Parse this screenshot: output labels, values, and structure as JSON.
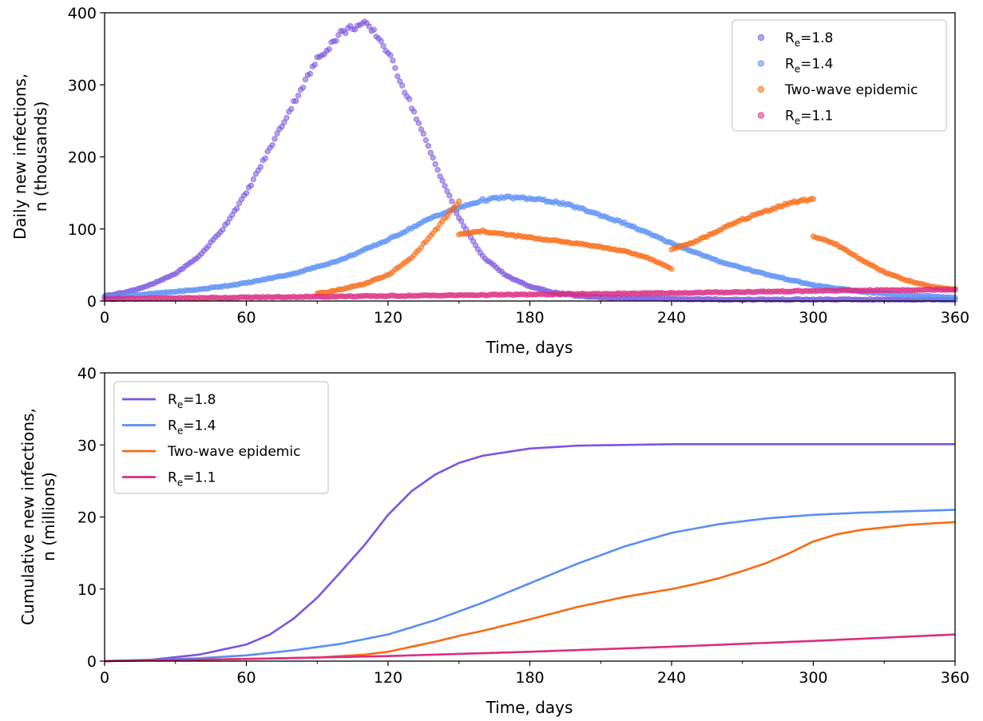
{
  "colors": {
    "re18": "#7b55e0",
    "re14": "#5a8ef5",
    "twowave": "#f96a14",
    "re11": "#dd2c82"
  },
  "chart_data": [
    {
      "type": "scatter",
      "xlabel": "Time, days",
      "ylabel_line1": "Daily new infections,",
      "ylabel_line2": "n (thousands)",
      "xlim": [
        0,
        360
      ],
      "ylim": [
        0,
        400
      ],
      "xticks": [
        0,
        60,
        120,
        180,
        240,
        300,
        360
      ],
      "yticks": [
        0,
        100,
        200,
        300,
        400
      ],
      "grid": false,
      "legend_position": "top-right",
      "series": [
        {
          "key": "re18",
          "name_main": "R",
          "name_sub": "e",
          "name_tail": "=1.8",
          "x": [
            0,
            10,
            20,
            30,
            40,
            50,
            60,
            70,
            80,
            90,
            100,
            105,
            110,
            115,
            120,
            130,
            140,
            150,
            160,
            170,
            180,
            190,
            200,
            210,
            220,
            240,
            260,
            300,
            360
          ],
          "y": [
            7,
            13,
            23,
            38,
            62,
            100,
            150,
            212,
            275,
            335,
            372,
            380,
            384,
            370,
            345,
            270,
            190,
            115,
            62,
            35,
            20,
            12,
            7,
            5,
            4,
            3,
            2,
            2,
            2
          ]
        },
        {
          "key": "re14",
          "name_main": "R",
          "name_sub": "e",
          "name_tail": "=1.4",
          "x": [
            0,
            20,
            40,
            60,
            80,
            100,
            120,
            140,
            160,
            170,
            180,
            190,
            200,
            220,
            240,
            260,
            280,
            300,
            320,
            340,
            360
          ],
          "y": [
            6,
            10,
            16,
            25,
            38,
            57,
            85,
            118,
            140,
            144,
            142,
            138,
            130,
            108,
            80,
            55,
            37,
            22,
            13,
            8,
            5
          ]
        },
        {
          "key": "twowave",
          "name_main": "Two-wave epidemic",
          "name_sub": "",
          "name_tail": "",
          "x": [
            90,
            100,
            110,
            120,
            130,
            140,
            150,
            150,
            160,
            170,
            180,
            190,
            200,
            210,
            220,
            230,
            240,
            240,
            250,
            260,
            270,
            280,
            290,
            300,
            300,
            310,
            320,
            330,
            340,
            350,
            360
          ],
          "y": [
            10,
            16,
            24,
            36,
            60,
            98,
            138,
            92,
            97,
            92,
            88,
            84,
            80,
            75,
            69,
            60,
            45,
            72,
            82,
            98,
            113,
            125,
            136,
            142,
            90,
            78,
            58,
            40,
            28,
            20,
            16
          ]
        },
        {
          "key": "re11",
          "name_main": "R",
          "name_sub": "e",
          "name_tail": "=1.1",
          "x": [
            0,
            60,
            120,
            180,
            240,
            300,
            360
          ],
          "y": [
            3,
            5,
            7,
            9,
            11,
            14,
            16
          ]
        }
      ]
    },
    {
      "type": "line",
      "xlabel": "Time, days",
      "ylabel_line1": "Cumulative new infections,",
      "ylabel_line2": "n (millions)",
      "xlim": [
        0,
        360
      ],
      "ylim": [
        0,
        40
      ],
      "xticks": [
        0,
        60,
        120,
        180,
        240,
        300,
        360
      ],
      "yticks": [
        0,
        10,
        20,
        30,
        40
      ],
      "grid": false,
      "legend_position": "top-left",
      "series": [
        {
          "key": "re18",
          "name_main": "R",
          "name_sub": "e",
          "name_tail": "=1.8",
          "x": [
            0,
            20,
            40,
            60,
            70,
            80,
            90,
            100,
            110,
            120,
            130,
            140,
            150,
            160,
            180,
            200,
            240,
            300,
            360
          ],
          "y": [
            0,
            0.2,
            0.9,
            2.3,
            3.7,
            5.9,
            8.8,
            12.4,
            16.1,
            20.3,
            23.6,
            25.9,
            27.5,
            28.5,
            29.5,
            29.9,
            30.1,
            30.1,
            30.1
          ]
        },
        {
          "key": "re14",
          "name_main": "R",
          "name_sub": "e",
          "name_tail": "=1.4",
          "x": [
            0,
            20,
            40,
            60,
            80,
            100,
            120,
            140,
            160,
            180,
            200,
            220,
            240,
            260,
            280,
            300,
            320,
            340,
            360
          ],
          "y": [
            0,
            0.15,
            0.4,
            0.8,
            1.5,
            2.4,
            3.7,
            5.7,
            8.1,
            10.8,
            13.5,
            15.9,
            17.8,
            19.0,
            19.8,
            20.3,
            20.6,
            20.8,
            21.0
          ]
        },
        {
          "key": "twowave",
          "name_main": "Two-wave epidemic",
          "name_sub": "",
          "name_tail": "",
          "x": [
            0,
            60,
            90,
            110,
            120,
            130,
            140,
            150,
            160,
            180,
            200,
            220,
            240,
            250,
            260,
            270,
            280,
            290,
            300,
            310,
            320,
            340,
            360
          ],
          "y": [
            0,
            0.3,
            0.5,
            0.9,
            1.3,
            2.0,
            2.7,
            3.5,
            4.2,
            5.8,
            7.5,
            8.9,
            10.0,
            10.7,
            11.5,
            12.5,
            13.6,
            15.0,
            16.6,
            17.6,
            18.2,
            18.9,
            19.3
          ]
        },
        {
          "key": "re11",
          "name_main": "R",
          "name_sub": "e",
          "name_tail": "=1.1",
          "x": [
            0,
            60,
            120,
            180,
            240,
            300,
            360
          ],
          "y": [
            0,
            0.3,
            0.7,
            1.3,
            2.0,
            2.8,
            3.7
          ]
        }
      ]
    }
  ]
}
